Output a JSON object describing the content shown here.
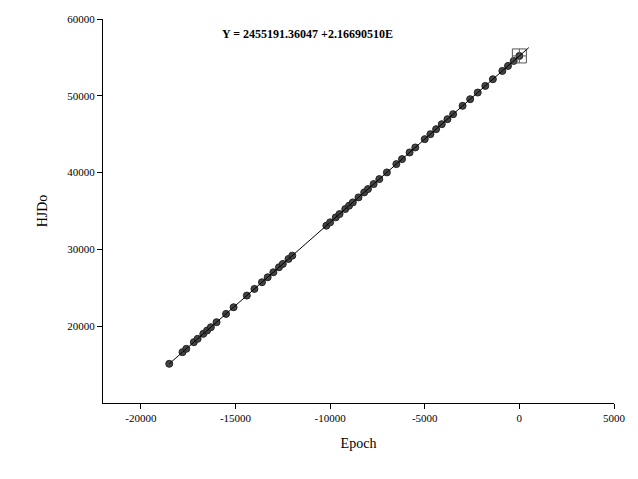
{
  "chart_data": {
    "type": "scatter",
    "annotations": [
      "Y = 2455191.36047 +2.16690510E"
    ],
    "x_label": "Epoch",
    "y_label": "HJDo",
    "xlim": [
      -22000,
      5000
    ],
    "xticks": [
      -20000,
      -15000,
      -10000,
      -5000,
      0,
      5000
    ],
    "ylim": [
      10000,
      60000
    ],
    "yticks": [
      20000,
      30000,
      40000,
      50000,
      60000
    ],
    "grid": false,
    "series": [
      {
        "type": "scatter",
        "color": "#444444",
        "marker": "circle",
        "x": [
          -18500,
          -17800,
          -17600,
          -17200,
          -17000,
          -16700,
          -16500,
          -16300,
          -16000,
          -15500,
          -15100,
          -14400,
          -14000,
          -13600,
          -13300,
          -13000,
          -12700,
          -12500,
          -12200,
          -12000,
          -10200,
          -10000,
          -9700,
          -9500,
          -9200,
          -9000,
          -8800,
          -8500,
          -8200,
          -8000,
          -7700,
          -7400,
          -7000,
          -6500,
          -6200,
          -5800,
          -5500,
          -5000,
          -4700,
          -4400,
          -4100,
          -3800,
          -3500,
          -3000,
          -2600,
          -2200,
          -1800,
          -1400,
          -900,
          -600,
          -300,
          0
        ],
        "values": [
          15104,
          16621,
          17054,
          17921,
          18354,
          19004,
          19437,
          19871,
          20521,
          21604,
          22471,
          23988,
          24855,
          25721,
          26371,
          27022,
          27672,
          28105,
          28755,
          29188,
          33089,
          33522,
          34172,
          34606,
          35256,
          35689,
          36123,
          36773,
          37423,
          37856,
          38506,
          39156,
          40023,
          41106,
          41757,
          42623,
          43273,
          44357,
          45007,
          45657,
          46307,
          46957,
          47607,
          48691,
          49557,
          50424,
          51291,
          52158,
          53241,
          53891,
          54541,
          55191
        ]
      },
      {
        "type": "scatter",
        "color": "#555555",
        "marker": "square-cross-open",
        "x": [
          0
        ],
        "values": [
          55191
        ]
      },
      {
        "type": "line",
        "color": "#000000",
        "line_style": "solid",
        "x": [
          -18500,
          500
        ],
        "values": [
          15104,
          56275
        ]
      }
    ]
  }
}
